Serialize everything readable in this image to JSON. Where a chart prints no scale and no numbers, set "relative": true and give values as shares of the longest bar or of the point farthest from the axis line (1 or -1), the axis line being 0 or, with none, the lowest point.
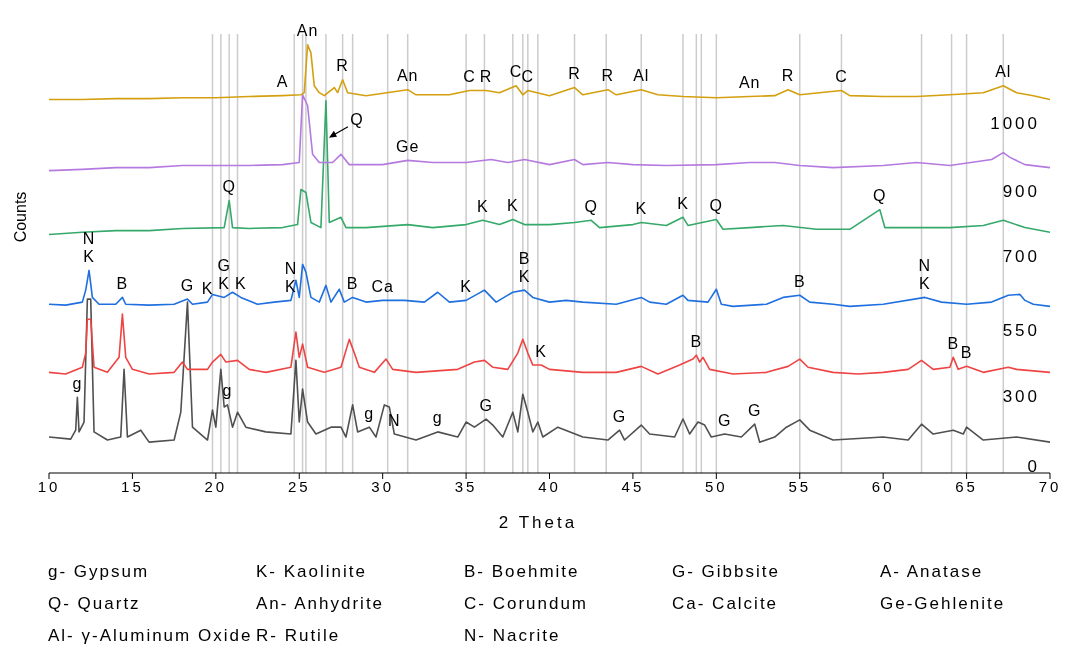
{
  "chart_data": {
    "type": "line",
    "relative": true,
    "xlabel": "2 Theta",
    "ylabel": "Counts",
    "xlim": [
      10,
      70
    ],
    "xticks": [
      10,
      15,
      20,
      25,
      30,
      35,
      40,
      45,
      50,
      55,
      60,
      65,
      70
    ],
    "marker": "none",
    "line_style": "solid",
    "series": [
      {
        "name": "0",
        "color": "#505050",
        "x": [
          10,
          11.3,
          11.6,
          11.7,
          11.8,
          12.1,
          12.3,
          12.5,
          12.7,
          13.5,
          14.3,
          14.5,
          14.7,
          15.5,
          16,
          17.5,
          17.9,
          18.3,
          18.6,
          19.5,
          19.8,
          20.0,
          20.3,
          20.5,
          20.7,
          21.0,
          21.3,
          21.8,
          23,
          24.5,
          24.8,
          25.0,
          25.2,
          25.5,
          26,
          26.9,
          27.5,
          27.8,
          28.2,
          28.5,
          29.2,
          29.6,
          30.1,
          30.4,
          30.7,
          32,
          33.3,
          34.5,
          35,
          35.5,
          36.2,
          36.6,
          37.2,
          37.8,
          38.1,
          38.4,
          38.7,
          39.0,
          39.3,
          39.6,
          40.5,
          42,
          43.5,
          44.2,
          44.5,
          45.5,
          46,
          47.5,
          48,
          48.4,
          48.9,
          49.3,
          49.7,
          50.5,
          51.5,
          52.3,
          52.6,
          53.5,
          54.2,
          55,
          55.6,
          57,
          60,
          61.5,
          62.3,
          63,
          64.2,
          64.8,
          65,
          66,
          68,
          70
        ],
        "values": [
          0.084,
          0.079,
          0.1,
          0.177,
          0.096,
          0.119,
          0.406,
          0.406,
          0.096,
          0.077,
          0.084,
          0.242,
          0.084,
          0.1,
          0.072,
          0.077,
          0.142,
          0.399,
          0.107,
          0.077,
          0.147,
          0.107,
          0.242,
          0.154,
          0.159,
          0.107,
          0.142,
          0.107,
          0.096,
          0.091,
          0.263,
          0.119,
          0.196,
          0.119,
          0.091,
          0.107,
          0.107,
          0.084,
          0.159,
          0.096,
          0.107,
          0.084,
          0.159,
          0.154,
          0.091,
          0.077,
          0.096,
          0.084,
          0.119,
          0.107,
          0.126,
          0.112,
          0.084,
          0.142,
          0.096,
          0.184,
          0.142,
          0.096,
          0.119,
          0.084,
          0.107,
          0.084,
          0.077,
          0.1,
          0.077,
          0.112,
          0.091,
          0.084,
          0.126,
          0.091,
          0.119,
          0.112,
          0.084,
          0.091,
          0.084,
          0.114,
          0.072,
          0.084,
          0.107,
          0.124,
          0.1,
          0.077,
          0.084,
          0.077,
          0.114,
          0.091,
          0.1,
          0.091,
          0.107,
          0.077,
          0.084,
          0.072
        ]
      },
      {
        "name": "300",
        "color": "#ef4444",
        "x": [
          10,
          11,
          12,
          12.2,
          12.3,
          12.5,
          12.7,
          13.5,
          14.2,
          14.4,
          14.6,
          15,
          16,
          17.5,
          18,
          18.3,
          19.5,
          19.8,
          20.3,
          20.6,
          21.3,
          22,
          23,
          24.5,
          24.8,
          25.0,
          25.2,
          25.5,
          26.5,
          27.5,
          28.0,
          28.3,
          28.6,
          29.5,
          30.2,
          30.6,
          32,
          34.5,
          35.5,
          36.1,
          36.6,
          37.5,
          38.1,
          38.4,
          38.7,
          39.0,
          39.5,
          40,
          42,
          44,
          45.5,
          46.5,
          47.8,
          48.6,
          48.8,
          49.0,
          49.2,
          49.6,
          51,
          53,
          54.3,
          55,
          55.5,
          57,
          58.5,
          60,
          61.5,
          62.3,
          63,
          64,
          64.2,
          64.5,
          65,
          66,
          67.5,
          68,
          70
        ],
        "values": [
          0.235,
          0.231,
          0.247,
          0.28,
          0.359,
          0.359,
          0.247,
          0.235,
          0.27,
          0.371,
          0.27,
          0.242,
          0.231,
          0.235,
          0.259,
          0.242,
          0.242,
          0.259,
          0.277,
          0.259,
          0.263,
          0.242,
          0.235,
          0.247,
          0.329,
          0.27,
          0.301,
          0.247,
          0.235,
          0.247,
          0.312,
          0.28,
          0.247,
          0.235,
          0.266,
          0.242,
          0.235,
          0.242,
          0.259,
          0.263,
          0.247,
          0.242,
          0.28,
          0.312,
          0.28,
          0.252,
          0.252,
          0.242,
          0.235,
          0.235,
          0.249,
          0.231,
          0.252,
          0.266,
          0.275,
          0.259,
          0.27,
          0.242,
          0.231,
          0.235,
          0.249,
          0.266,
          0.247,
          0.235,
          0.231,
          0.235,
          0.242,
          0.263,
          0.242,
          0.247,
          0.27,
          0.242,
          0.249,
          0.235,
          0.247,
          0.242,
          0.235
        ]
      },
      {
        "name": "550",
        "color": "#1f6fdf",
        "x": [
          10,
          11,
          12.0,
          12.2,
          12.4,
          12.6,
          13,
          14,
          14.4,
          14.6,
          16,
          17.5,
          18.3,
          18.6,
          19.5,
          19.8,
          20.5,
          21.0,
          21.5,
          22.5,
          23.5,
          24.5,
          24.8,
          25.0,
          25.2,
          25.4,
          25.7,
          26.2,
          26.6,
          26.9,
          27.4,
          27.7,
          28.2,
          29,
          30,
          31.3,
          32.5,
          33.3,
          34,
          35,
          36.1,
          36.8,
          37.8,
          38.5,
          39,
          40,
          41,
          42,
          44,
          45.5,
          46,
          47,
          48,
          48.3,
          49.5,
          50.0,
          50.3,
          51,
          53,
          54,
          55,
          55.6,
          57,
          58,
          60,
          62.5,
          63.5,
          65,
          66.5,
          67.5,
          68.2,
          68.5,
          69,
          70
        ],
        "values": [
          0.394,
          0.392,
          0.399,
          0.427,
          0.473,
          0.41,
          0.394,
          0.394,
          0.41,
          0.394,
          0.392,
          0.394,
          0.406,
          0.394,
          0.399,
          0.417,
          0.41,
          0.422,
          0.41,
          0.394,
          0.399,
          0.403,
          0.45,
          0.41,
          0.487,
          0.469,
          0.41,
          0.399,
          0.438,
          0.399,
          0.429,
          0.399,
          0.41,
          0.399,
          0.403,
          0.403,
          0.399,
          0.422,
          0.399,
          0.403,
          0.427,
          0.399,
          0.422,
          0.427,
          0.41,
          0.399,
          0.403,
          0.399,
          0.394,
          0.41,
          0.399,
          0.394,
          0.415,
          0.403,
          0.399,
          0.429,
          0.394,
          0.389,
          0.394,
          0.41,
          0.415,
          0.399,
          0.394,
          0.389,
          0.394,
          0.41,
          0.399,
          0.394,
          0.399,
          0.415,
          0.417,
          0.403,
          0.394,
          0.389
        ]
      },
      {
        "name": "700",
        "color": "#35a96a",
        "x": [
          10,
          12,
          14,
          16,
          18,
          20.5,
          20.8,
          21.0,
          22,
          24,
          24.9,
          25.1,
          25.4,
          25.7,
          26.3,
          26.6,
          26.8,
          27.5,
          27.8,
          29,
          31.5,
          33,
          35,
          36,
          37,
          37.8,
          38.5,
          40,
          41.5,
          42.5,
          43,
          45,
          45.5,
          47,
          48,
          48.3,
          50,
          50.4,
          52,
          54,
          56,
          58,
          59.8,
          60.1,
          62,
          64,
          66,
          67.2,
          68.5,
          70
        ],
        "values": [
          0.557,
          0.562,
          0.566,
          0.566,
          0.571,
          0.573,
          0.636,
          0.573,
          0.571,
          0.573,
          0.58,
          0.662,
          0.655,
          0.585,
          0.573,
          0.869,
          0.585,
          0.597,
          0.573,
          0.573,
          0.58,
          0.573,
          0.58,
          0.59,
          0.58,
          0.592,
          0.58,
          0.58,
          0.585,
          0.59,
          0.573,
          0.58,
          0.585,
          0.578,
          0.597,
          0.578,
          0.592,
          0.569,
          0.573,
          0.578,
          0.569,
          0.569,
          0.615,
          0.573,
          0.573,
          0.573,
          0.578,
          0.59,
          0.573,
          0.562
        ]
      },
      {
        "name": "900",
        "color": "#b57ae0",
        "x": [
          10,
          12,
          14,
          16,
          18,
          20,
          22,
          24,
          25.0,
          25.2,
          25.5,
          25.8,
          26.2,
          27.0,
          27.5,
          28,
          30,
          31.5,
          33,
          35,
          36.5,
          37.5,
          38.5,
          40,
          41.5,
          42,
          43.5,
          45,
          47,
          50,
          52,
          53.5,
          55,
          57,
          60,
          62,
          64,
          66.5,
          67.2,
          67.6,
          68.5,
          70
        ],
        "values": [
          0.706,
          0.709,
          0.713,
          0.713,
          0.718,
          0.718,
          0.718,
          0.72,
          0.725,
          0.883,
          0.858,
          0.744,
          0.725,
          0.725,
          0.744,
          0.72,
          0.72,
          0.73,
          0.725,
          0.725,
          0.732,
          0.725,
          0.732,
          0.72,
          0.732,
          0.72,
          0.725,
          0.72,
          0.718,
          0.72,
          0.725,
          0.725,
          0.718,
          0.713,
          0.718,
          0.725,
          0.718,
          0.732,
          0.748,
          0.737,
          0.72,
          0.713
        ]
      },
      {
        "name": "1000",
        "color": "#d4a010",
        "x": [
          10,
          12,
          14,
          16,
          18,
          20,
          22,
          24,
          25.1,
          25.3,
          25.5,
          25.7,
          25.9,
          26.2,
          26.5,
          27.1,
          27.3,
          27.6,
          27.9,
          29,
          31.5,
          32,
          34,
          35.2,
          36.2,
          37,
          38,
          38.4,
          38.7,
          40,
          41.5,
          42,
          43.5,
          44,
          45.5,
          46.5,
          48,
          50,
          52,
          53.5,
          54.3,
          55,
          57.5,
          58,
          60,
          62,
          64,
          66,
          67.2,
          68,
          69,
          70
        ],
        "values": [
          0.872,
          0.872,
          0.874,
          0.874,
          0.876,
          0.876,
          0.879,
          0.881,
          0.883,
          0.888,
          1,
          0.981,
          0.904,
          0.888,
          0.881,
          0.9,
          0.888,
          0.918,
          0.888,
          0.881,
          0.895,
          0.883,
          0.883,
          0.893,
          0.893,
          0.888,
          0.904,
          0.883,
          0.893,
          0.881,
          0.9,
          0.883,
          0.895,
          0.883,
          0.895,
          0.883,
          0.879,
          0.876,
          0.879,
          0.881,
          0.895,
          0.883,
          0.893,
          0.881,
          0.879,
          0.879,
          0.883,
          0.888,
          0.904,
          0.888,
          0.881,
          0.872
        ]
      }
    ],
    "ref_lines": [
      {
        "axis": "x",
        "value": 19.8,
        "color": "#cccccc"
      },
      {
        "axis": "x",
        "value": 20.3,
        "color": "#cccccc"
      },
      {
        "axis": "x",
        "value": 20.8,
        "color": "#cccccc"
      },
      {
        "axis": "x",
        "value": 21.3,
        "color": "#cccccc"
      },
      {
        "axis": "x",
        "value": 24.7,
        "color": "#cccccc"
      },
      {
        "axis": "x",
        "value": 25.2,
        "color": "#cccccc"
      },
      {
        "axis": "x",
        "value": 25.4,
        "color": "#cccccc"
      },
      {
        "axis": "x",
        "value": 26.6,
        "color": "#cccccc"
      },
      {
        "axis": "x",
        "value": 27.6,
        "color": "#cccccc"
      },
      {
        "axis": "x",
        "value": 28.2,
        "color": "#cccccc"
      },
      {
        "axis": "x",
        "value": 30.3,
        "color": "#cccccc"
      },
      {
        "axis": "x",
        "value": 31.5,
        "color": "#cccccc"
      },
      {
        "axis": "x",
        "value": 35,
        "color": "#cccccc"
      },
      {
        "axis": "x",
        "value": 36.1,
        "color": "#cccccc"
      },
      {
        "axis": "x",
        "value": 37.8,
        "color": "#cccccc"
      },
      {
        "axis": "x",
        "value": 38.4,
        "color": "#cccccc"
      },
      {
        "axis": "x",
        "value": 38.7,
        "color": "#cccccc"
      },
      {
        "axis": "x",
        "value": 39.3,
        "color": "#cccccc"
      },
      {
        "axis": "x",
        "value": 41.5,
        "color": "#cccccc"
      },
      {
        "axis": "x",
        "value": 43.4,
        "color": "#cccccc"
      },
      {
        "axis": "x",
        "value": 45.5,
        "color": "#cccccc"
      },
      {
        "axis": "x",
        "value": 48,
        "color": "#cccccc"
      },
      {
        "axis": "x",
        "value": 48.8,
        "color": "#cccccc"
      },
      {
        "axis": "x",
        "value": 49.1,
        "color": "#cccccc"
      },
      {
        "axis": "x",
        "value": 50,
        "color": "#cccccc"
      },
      {
        "axis": "x",
        "value": 55,
        "color": "#cccccc"
      },
      {
        "axis": "x",
        "value": 57.5,
        "color": "#cccccc"
      },
      {
        "axis": "x",
        "value": 62.3,
        "color": "#cccccc"
      },
      {
        "axis": "x",
        "value": 64.1,
        "color": "#cccccc"
      },
      {
        "axis": "x",
        "value": 65,
        "color": "#cccccc"
      },
      {
        "axis": "x",
        "value": 67.2,
        "color": "#cccccc"
      }
    ],
    "annotations": [
      {
        "text": "Q",
        "x": 26.6,
        "y": 0.869
      },
      {
        "text": "A",
        "x": 24,
        "y": 0.881
      },
      {
        "text": "An",
        "x": 25.5,
        "y": 1
      },
      {
        "text": "R",
        "x": 27.6,
        "y": 0.918
      },
      {
        "text": "An",
        "x": 31.5,
        "y": 0.895
      },
      {
        "text": "C",
        "x": 35.2,
        "y": 0.893
      },
      {
        "text": "R",
        "x": 36.2,
        "y": 0.893
      },
      {
        "text": "C",
        "x": 38,
        "y": 0.904
      },
      {
        "text": "C",
        "x": 38.7,
        "y": 0.893
      },
      {
        "text": "R",
        "x": 41.5,
        "y": 0.9
      },
      {
        "text": "R",
        "x": 43.5,
        "y": 0.895
      },
      {
        "text": "Al",
        "x": 45.5,
        "y": 0.895
      },
      {
        "text": "An",
        "x": 52,
        "y": 0.879
      },
      {
        "text": "R",
        "x": 54.3,
        "y": 0.895
      },
      {
        "text": "C",
        "x": 57.5,
        "y": 0.893
      },
      {
        "text": "Al",
        "x": 67.2,
        "y": 0.904
      },
      {
        "text": "Ge",
        "x": 31.5,
        "y": 0.73
      },
      {
        "text": "Q",
        "x": 20.8,
        "y": 0.636
      },
      {
        "text": "K",
        "x": 36,
        "y": 0.59
      },
      {
        "text": "K",
        "x": 37.8,
        "y": 0.592
      },
      {
        "text": "Q",
        "x": 42.5,
        "y": 0.59
      },
      {
        "text": "K",
        "x": 45.5,
        "y": 0.585
      },
      {
        "text": "K",
        "x": 48,
        "y": 0.597
      },
      {
        "text": "Q",
        "x": 50,
        "y": 0.592
      },
      {
        "text": "Q",
        "x": 59.8,
        "y": 0.615
      },
      {
        "text": "N",
        "x": 12.4,
        "y": 0.473
      },
      {
        "text": "K",
        "x": 12.4,
        "y": 0.473
      },
      {
        "text": "B",
        "x": 14.4,
        "y": 0.41
      },
      {
        "text": "G",
        "x": 18.3,
        "y": 0.406
      },
      {
        "text": "K",
        "x": 19.5,
        "y": 0.399
      },
      {
        "text": "G",
        "x": 20.5,
        "y": 0.41
      },
      {
        "text": "K",
        "x": 20.5,
        "y": 0.41
      },
      {
        "text": "K",
        "x": 21.5,
        "y": 0.41
      },
      {
        "text": "N",
        "x": 24.5,
        "y": 0.403
      },
      {
        "text": "K",
        "x": 24.5,
        "y": 0.403
      },
      {
        "text": "B",
        "x": 28.2,
        "y": 0.41
      },
      {
        "text": "Ca",
        "x": 30,
        "y": 0.403
      },
      {
        "text": "K",
        "x": 35,
        "y": 0.403
      },
      {
        "text": "B",
        "x": 38.5,
        "y": 0.427
      },
      {
        "text": "K",
        "x": 38.5,
        "y": 0.427
      },
      {
        "text": "B",
        "x": 55,
        "y": 0.415
      },
      {
        "text": "N",
        "x": 62.5,
        "y": 0.41
      },
      {
        "text": "K",
        "x": 62.5,
        "y": 0.41
      },
      {
        "text": "K",
        "x": 39.5,
        "y": 0.252
      },
      {
        "text": "B",
        "x": 48.8,
        "y": 0.275
      },
      {
        "text": "B",
        "x": 64.2,
        "y": 0.27
      },
      {
        "text": "B",
        "x": 65,
        "y": 0.249
      },
      {
        "text": "g",
        "x": 11.7,
        "y": 0.177
      },
      {
        "text": "g",
        "x": 20.7,
        "y": 0.159
      },
      {
        "text": "g",
        "x": 29.2,
        "y": 0.107
      },
      {
        "text": "N",
        "x": 30.7,
        "y": 0.091
      },
      {
        "text": "g",
        "x": 33.3,
        "y": 0.096
      },
      {
        "text": "G",
        "x": 36.2,
        "y": 0.126
      },
      {
        "text": "G",
        "x": 44.2,
        "y": 0.1
      },
      {
        "text": "G",
        "x": 50.5,
        "y": 0.091
      },
      {
        "text": "G",
        "x": 52.3,
        "y": 0.114
      },
      "g- Gypsum",
      "K- Kaolinite",
      "B- Boehmite",
      "G- Gibbsite",
      "A- Anatase",
      "Q- Quartz",
      "An- Anhydrite",
      "C- Corundum",
      "Ca- Calcite",
      "Ge-Gehlenite",
      "Al- γ-Aluminum Oxide",
      "R- Rutile",
      "N- Nacrite"
    ]
  }
}
